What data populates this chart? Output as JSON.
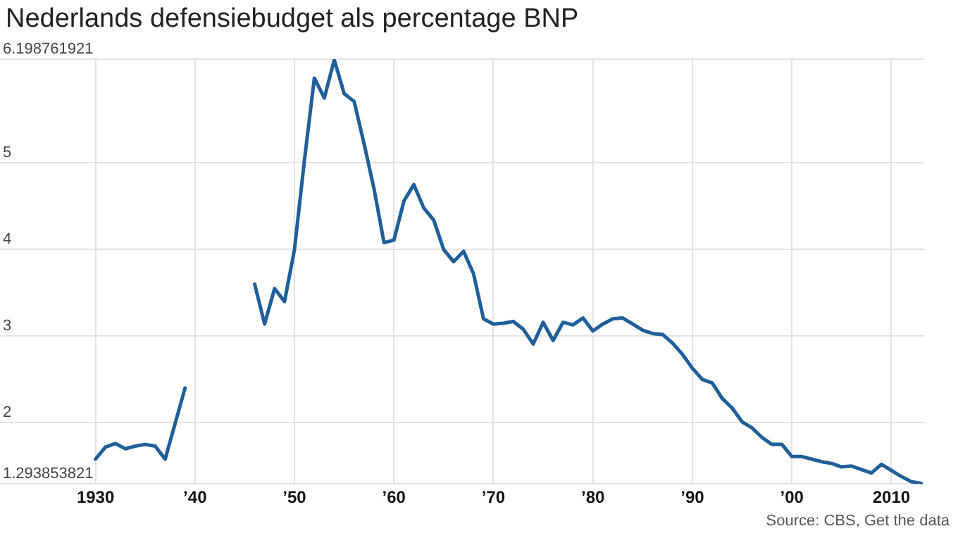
{
  "chart_data": {
    "type": "line",
    "title": "Nederlands defensiebudget als percentage BNP",
    "x": [
      1930,
      1931,
      1932,
      1933,
      1934,
      1935,
      1936,
      1937,
      1938,
      1939,
      1940,
      1941,
      1942,
      1943,
      1944,
      1945,
      1946,
      1947,
      1948,
      1949,
      1950,
      1951,
      1952,
      1953,
      1954,
      1955,
      1956,
      1957,
      1958,
      1959,
      1960,
      1961,
      1962,
      1963,
      1964,
      1965,
      1966,
      1967,
      1968,
      1969,
      1970,
      1971,
      1972,
      1973,
      1974,
      1975,
      1976,
      1977,
      1978,
      1979,
      1980,
      1981,
      1982,
      1983,
      1984,
      1985,
      1986,
      1987,
      1988,
      1989,
      1990,
      1991,
      1992,
      1993,
      1994,
      1995,
      1996,
      1997,
      1998,
      1999,
      2000,
      2001,
      2002,
      2003,
      2004,
      2005,
      2006,
      2007,
      2008,
      2009,
      2010,
      2011,
      2012,
      2013
    ],
    "series": [
      {
        "color": "#1f5f99",
        "values": [
          1.58,
          1.72,
          1.76,
          1.7,
          1.73,
          1.75,
          1.73,
          1.58,
          1.99,
          2.4,
          null,
          null,
          null,
          null,
          null,
          null,
          3.6,
          3.14,
          3.55,
          3.4,
          4.0,
          5.03,
          5.98,
          5.75,
          6.19,
          5.8,
          5.71,
          5.22,
          4.7,
          4.08,
          4.11,
          4.56,
          4.75,
          4.48,
          4.34,
          4.0,
          3.86,
          3.98,
          3.72,
          3.2,
          3.14,
          3.15,
          3.17,
          3.08,
          2.91,
          3.16,
          2.95,
          3.16,
          3.13,
          3.21,
          3.06,
          3.14,
          3.2,
          3.21,
          3.14,
          3.07,
          3.03,
          3.02,
          2.92,
          2.79,
          2.63,
          2.5,
          2.46,
          2.28,
          2.17,
          2.01,
          1.94,
          1.83,
          1.75,
          1.75,
          1.61,
          1.61,
          1.58,
          1.55,
          1.53,
          1.49,
          1.5,
          1.46,
          1.42,
          1.52,
          1.45,
          1.38,
          1.32,
          1.3
        ]
      }
    ],
    "xlim": [
      1920.4,
      2013.3
    ],
    "xticks": [
      1930,
      {
        "value": 1940,
        "label": "’40"
      },
      {
        "value": 1950,
        "label": "’50"
      },
      {
        "value": 1960,
        "label": "’60"
      },
      {
        "value": 1970,
        "label": "’70"
      },
      {
        "value": 1980,
        "label": "’80"
      },
      {
        "value": 1990,
        "label": "’90"
      },
      {
        "value": 2000,
        "label": "’00"
      },
      2010
    ],
    "ylim": [
      1.293853821,
      6.198761921
    ],
    "yticks": [
      1.293853821,
      2,
      3,
      4,
      5,
      6.198761921
    ],
    "grid": true,
    "legend": false,
    "marker": "none",
    "line_style": "solid",
    "annotations": [
      "Source: CBS, Get the data"
    ]
  }
}
